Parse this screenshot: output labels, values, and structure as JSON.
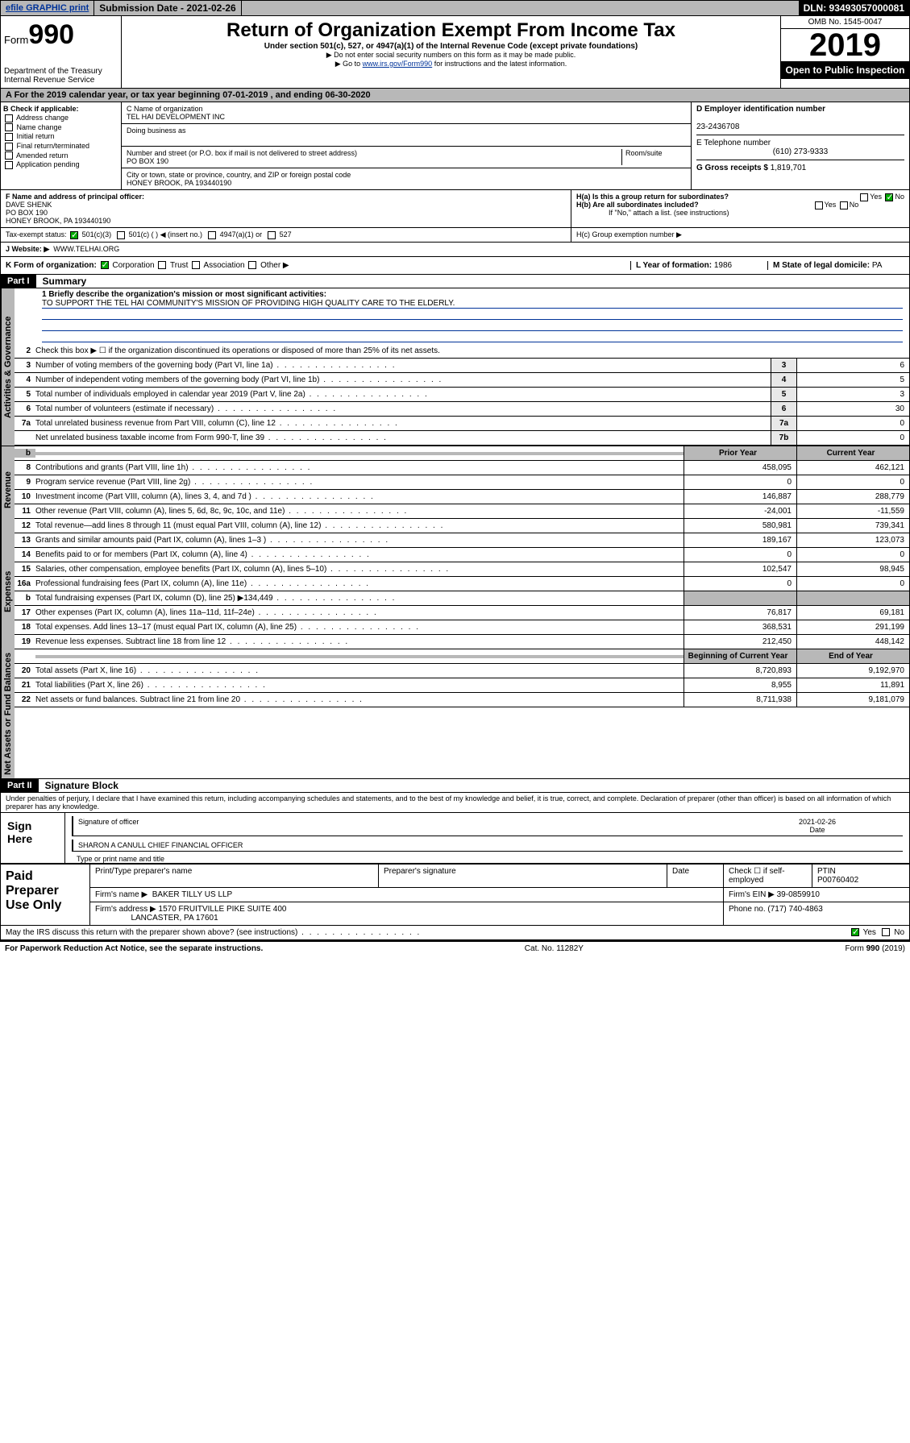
{
  "topbar": {
    "efile": "efile GRAPHIC print",
    "submission_label": "Submission Date - 2021-02-26",
    "dln": "DLN: 93493057000081"
  },
  "header": {
    "form_prefix": "Form",
    "form_number": "990",
    "dept": "Department of the Treasury\nInternal Revenue Service",
    "title": "Return of Organization Exempt From Income Tax",
    "subtitle": "Under section 501(c), 527, or 4947(a)(1) of the Internal Revenue Code (except private foundations)",
    "note1": "▶ Do not enter social security numbers on this form as it may be made public.",
    "note2_pre": "▶ Go to ",
    "note2_link": "www.irs.gov/Form990",
    "note2_post": " for instructions and the latest information.",
    "omb": "OMB No. 1545-0047",
    "year": "2019",
    "open": "Open to Public Inspection"
  },
  "period": "A For the 2019 calendar year, or tax year beginning 07-01-2019    , and ending 06-30-2020",
  "boxB": {
    "label": "B Check if applicable:",
    "items": [
      "Address change",
      "Name change",
      "Initial return",
      "Final return/terminated",
      "Amended return",
      "Application pending"
    ]
  },
  "boxC": {
    "name_label": "C Name of organization",
    "name": "TEL HAI DEVELOPMENT INC",
    "dba_label": "Doing business as",
    "street_label": "Number and street (or P.O. box if mail is not delivered to street address)",
    "room_label": "Room/suite",
    "street": "PO BOX 190",
    "city_label": "City or town, state or province, country, and ZIP or foreign postal code",
    "city": "HONEY BROOK, PA  193440190"
  },
  "boxD": {
    "label": "D Employer identification number",
    "val": "23-2436708"
  },
  "boxE": {
    "label": "E Telephone number",
    "val": "(610) 273-9333"
  },
  "boxG": {
    "label": "G Gross receipts $",
    "val": "1,819,701"
  },
  "boxF": {
    "label": "F Name and address of principal officer:",
    "name": "DAVE SHENK",
    "addr1": "PO BOX 190",
    "addr2": "HONEY BROOK, PA  193440190"
  },
  "boxH": {
    "a": "H(a)  Is this a group return for subordinates?",
    "b": "H(b)  Are all subordinates included?",
    "b_note": "If \"No,\" attach a list. (see instructions)",
    "c": "H(c)  Group exemption number ▶"
  },
  "taxexempt": {
    "label": "Tax-exempt status:",
    "c3": "501(c)(3)",
    "c": "501(c) (   ) ◀ (insert no.)",
    "a1": "4947(a)(1) or",
    "s527": "527"
  },
  "boxJ": {
    "label": "J   Website: ▶",
    "val": "WWW.TELHAI.ORG"
  },
  "boxK": {
    "label": "K Form of organization:",
    "corp": "Corporation",
    "trust": "Trust",
    "assoc": "Association",
    "other": "Other ▶"
  },
  "boxL": {
    "label": "L Year of formation:",
    "val": "1986"
  },
  "boxM": {
    "label": "M State of legal domicile:",
    "val": "PA"
  },
  "part1": {
    "hdr": "Part I",
    "title": "Summary",
    "l1_label": "1  Briefly describe the organization's mission or most significant activities:",
    "l1_val": "TO SUPPORT THE TEL HAI COMMUNITY'S MISSION OF PROVIDING HIGH QUALITY CARE TO THE ELDERLY.",
    "l2": "Check this box ▶ ☐  if the organization discontinued its operations or disposed of more than 25% of its net assets.",
    "rows_gov": [
      {
        "n": "3",
        "t": "Number of voting members of the governing body (Part VI, line 1a)",
        "c": "3",
        "v": "6"
      },
      {
        "n": "4",
        "t": "Number of independent voting members of the governing body (Part VI, line 1b)",
        "c": "4",
        "v": "5"
      },
      {
        "n": "5",
        "t": "Total number of individuals employed in calendar year 2019 (Part V, line 2a)",
        "c": "5",
        "v": "3"
      },
      {
        "n": "6",
        "t": "Total number of volunteers (estimate if necessary)",
        "c": "6",
        "v": "30"
      },
      {
        "n": "7a",
        "t": "Total unrelated business revenue from Part VIII, column (C), line 12",
        "c": "7a",
        "v": "0"
      },
      {
        "n": "",
        "t": "Net unrelated business taxable income from Form 990-T, line 39",
        "c": "7b",
        "v": "0"
      }
    ],
    "col_prior": "Prior Year",
    "col_current": "Current Year",
    "rows_rev": [
      {
        "n": "8",
        "t": "Contributions and grants (Part VIII, line 1h)",
        "p": "458,095",
        "c": "462,121"
      },
      {
        "n": "9",
        "t": "Program service revenue (Part VIII, line 2g)",
        "p": "0",
        "c": "0"
      },
      {
        "n": "10",
        "t": "Investment income (Part VIII, column (A), lines 3, 4, and 7d )",
        "p": "146,887",
        "c": "288,779"
      },
      {
        "n": "11",
        "t": "Other revenue (Part VIII, column (A), lines 5, 6d, 8c, 9c, 10c, and 11e)",
        "p": "-24,001",
        "c": "-11,559"
      },
      {
        "n": "12",
        "t": "Total revenue—add lines 8 through 11 (must equal Part VIII, column (A), line 12)",
        "p": "580,981",
        "c": "739,341"
      }
    ],
    "rows_exp": [
      {
        "n": "13",
        "t": "Grants and similar amounts paid (Part IX, column (A), lines 1–3 )",
        "p": "189,167",
        "c": "123,073"
      },
      {
        "n": "14",
        "t": "Benefits paid to or for members (Part IX, column (A), line 4)",
        "p": "0",
        "c": "0"
      },
      {
        "n": "15",
        "t": "Salaries, other compensation, employee benefits (Part IX, column (A), lines 5–10)",
        "p": "102,547",
        "c": "98,945"
      },
      {
        "n": "16a",
        "t": "Professional fundraising fees (Part IX, column (A), line 11e)",
        "p": "0",
        "c": "0"
      },
      {
        "n": "b",
        "t": "Total fundraising expenses (Part IX, column (D), line 25) ▶134,449",
        "p": "",
        "c": "",
        "shade": true
      },
      {
        "n": "17",
        "t": "Other expenses (Part IX, column (A), lines 11a–11d, 11f–24e)",
        "p": "76,817",
        "c": "69,181"
      },
      {
        "n": "18",
        "t": "Total expenses. Add lines 13–17 (must equal Part IX, column (A), line 25)",
        "p": "368,531",
        "c": "291,199"
      },
      {
        "n": "19",
        "t": "Revenue less expenses. Subtract line 18 from line 12",
        "p": "212,450",
        "c": "448,142"
      }
    ],
    "col_begin": "Beginning of Current Year",
    "col_end": "End of Year",
    "rows_net": [
      {
        "n": "20",
        "t": "Total assets (Part X, line 16)",
        "p": "8,720,893",
        "c": "9,192,970"
      },
      {
        "n": "21",
        "t": "Total liabilities (Part X, line 26)",
        "p": "8,955",
        "c": "11,891"
      },
      {
        "n": "22",
        "t": "Net assets or fund balances. Subtract line 21 from line 20",
        "p": "8,711,938",
        "c": "9,181,079"
      }
    ]
  },
  "vtabs": {
    "gov": "Activities & Governance",
    "rev": "Revenue",
    "exp": "Expenses",
    "net": "Net Assets or Fund Balances"
  },
  "part2": {
    "hdr": "Part II",
    "title": "Signature Block",
    "perjury": "Under penalties of perjury, I declare that I have examined this return, including accompanying schedules and statements, and to the best of my knowledge and belief, it is true, correct, and complete. Declaration of preparer (other than officer) is based on all information of which preparer has any knowledge."
  },
  "sign": {
    "here": "Sign Here",
    "sig_label": "Signature of officer",
    "date": "2021-02-26",
    "date_label": "Date",
    "name": "SHARON A CANULL  CHIEF FINANCIAL OFFICER",
    "name_label": "Type or print name and title"
  },
  "paid": {
    "label": "Paid Preparer Use Only",
    "h_name": "Print/Type preparer's name",
    "h_sig": "Preparer's signature",
    "h_date": "Date",
    "h_check": "Check ☐ if self-employed",
    "h_ptin": "PTIN",
    "ptin": "P00760402",
    "firm_label": "Firm's name     ▶",
    "firm": "BAKER TILLY US LLP",
    "ein_label": "Firm's EIN ▶",
    "ein": "39-0859910",
    "addr_label": "Firm's address ▶",
    "addr1": "1570 FRUITVILLE PIKE SUITE 400",
    "addr2": "LANCASTER, PA  17601",
    "phone_label": "Phone no.",
    "phone": "(717) 740-4863"
  },
  "discuss": "May the IRS discuss this return with the preparer shown above? (see instructions)",
  "footer": {
    "pra": "For Paperwork Reduction Act Notice, see the separate instructions.",
    "cat": "Cat. No. 11282Y",
    "form": "Form 990 (2019)"
  }
}
